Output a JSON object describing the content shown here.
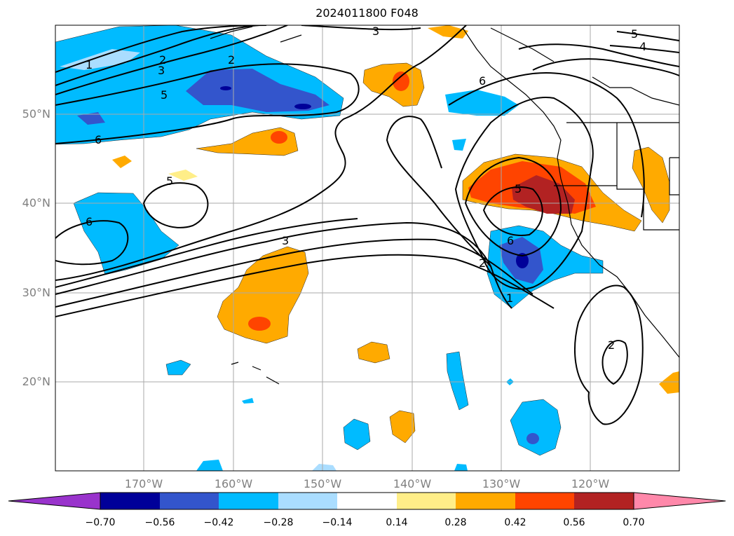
{
  "title": "2024011800 F048",
  "lat_labels": [
    "50°N",
    "40°N",
    "30°N",
    "20°N"
  ],
  "lon_labels": [
    "170°W",
    "160°W",
    "150°W",
    "140°W",
    "130°W",
    "120°W"
  ],
  "contour_labels": [
    "1",
    "2",
    "3",
    "5",
    "6",
    "6",
    "5",
    "6",
    "3",
    "3",
    "5",
    "4",
    "2",
    "5",
    "6",
    "2",
    "1",
    "2"
  ],
  "colorbar": {
    "ticks": [
      "−0.70",
      "−0.56",
      "−0.42",
      "−0.28",
      "−0.14",
      "0.14",
      "0.28",
      "0.42",
      "0.56",
      "0.70"
    ],
    "colors": [
      "#9933cc",
      "#000099",
      "#3355cc",
      "#00bbff",
      "#aaddff",
      "#ffffff",
      "#ffee88",
      "#ffaa00",
      "#ff4400",
      "#b22222",
      "#ff88aa"
    ]
  }
}
